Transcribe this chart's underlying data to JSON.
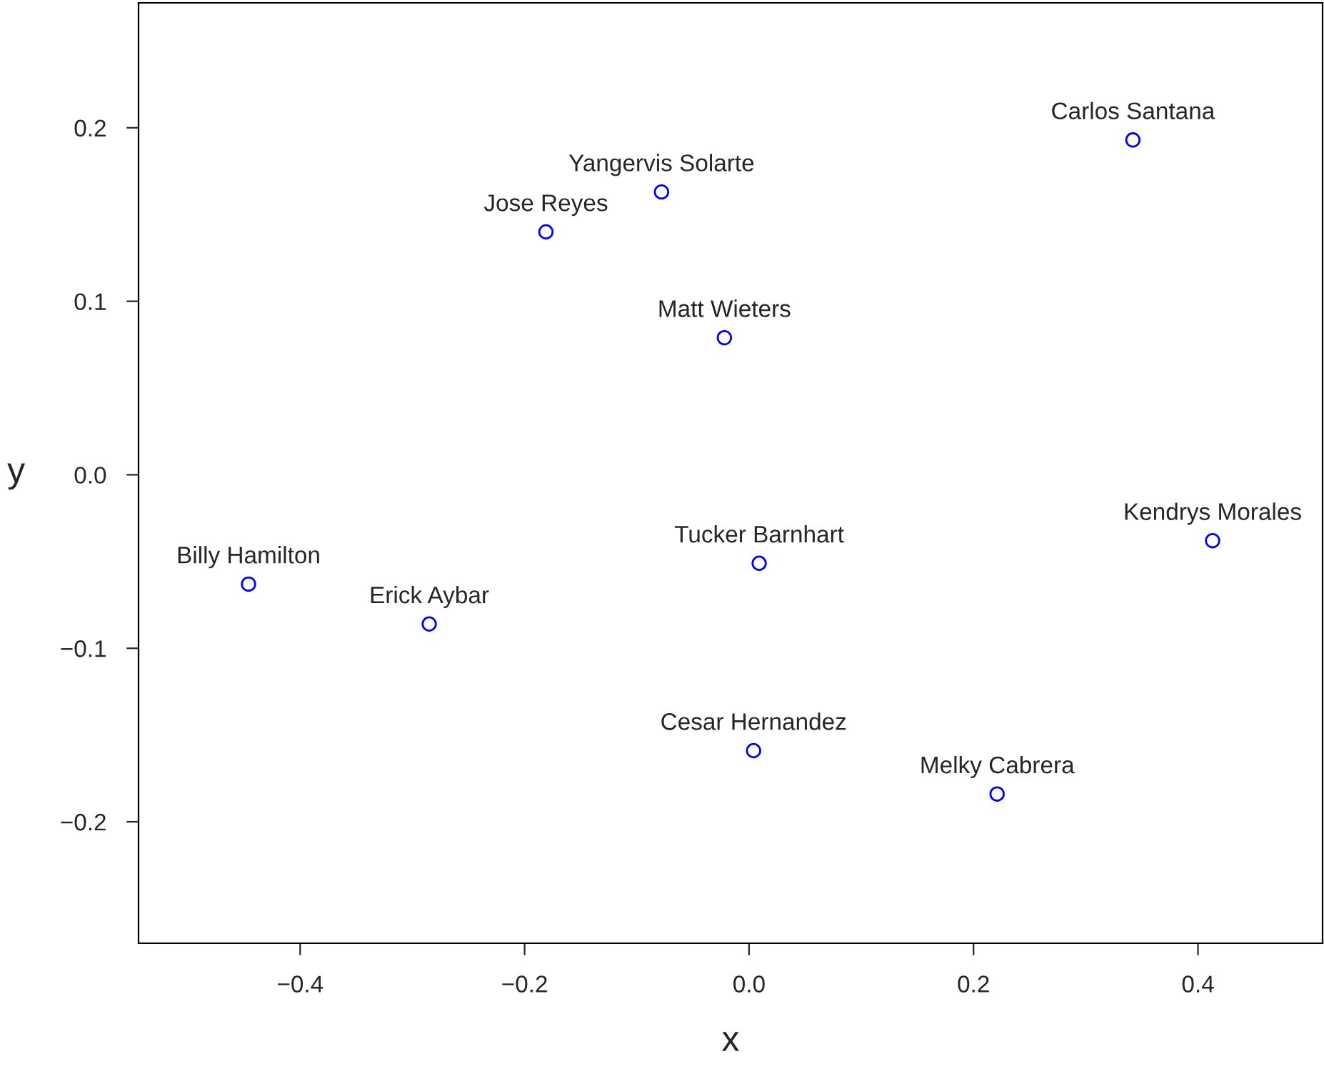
{
  "chart_data": {
    "type": "scatter",
    "xlabel": "x",
    "ylabel": "y",
    "x": [
      0.342,
      -0.078,
      -0.181,
      -0.022,
      0.413,
      0.009,
      -0.446,
      -0.285,
      0.004,
      0.221
    ],
    "series": [
      {
        "color": "#0000ff",
        "values": [
          0.193,
          0.163,
          0.14,
          0.079,
          -0.038,
          -0.051,
          -0.063,
          -0.086,
          -0.159,
          -0.184
        ]
      }
    ],
    "annotations": [
      {
        "text": "Carlos Santana",
        "x": 0.342,
        "y": 0.193
      },
      {
        "text": "Yangervis Solarte",
        "x": -0.078,
        "y": 0.163
      },
      {
        "text": "Jose Reyes",
        "x": -0.181,
        "y": 0.14
      },
      {
        "text": "Matt Wieters",
        "x": -0.022,
        "y": 0.079
      },
      {
        "text": "Kendrys Morales",
        "x": 0.413,
        "y": -0.038
      },
      {
        "text": "Tucker Barnhart",
        "x": 0.009,
        "y": -0.051
      },
      {
        "text": "Billy Hamilton",
        "x": -0.446,
        "y": -0.063
      },
      {
        "text": "Erick Aybar",
        "x": -0.285,
        "y": -0.086
      },
      {
        "text": "Cesar Hernandez",
        "x": 0.004,
        "y": -0.159
      },
      {
        "text": "Melky Cabrera",
        "x": 0.221,
        "y": -0.184
      }
    ],
    "xlim": [
      -0.544,
      0.511
    ],
    "ylim": [
      -0.27,
      0.272
    ],
    "xticks": [
      {
        "value": -0.4,
        "label": "−0.4"
      },
      {
        "value": -0.2,
        "label": "−0.2"
      },
      {
        "value": 0.0,
        "label": "0.0"
      },
      {
        "value": 0.2,
        "label": "0.2"
      },
      {
        "value": 0.4,
        "label": "0.4"
      }
    ],
    "yticks": [
      {
        "value": -0.2,
        "label": "−0.2"
      },
      {
        "value": -0.1,
        "label": "−0.1"
      },
      {
        "value": 0.0,
        "label": "0.0"
      },
      {
        "value": 0.1,
        "label": "0.1"
      },
      {
        "value": 0.2,
        "label": "0.2"
      }
    ],
    "marker": "circle",
    "grid": false,
    "legend": false
  }
}
